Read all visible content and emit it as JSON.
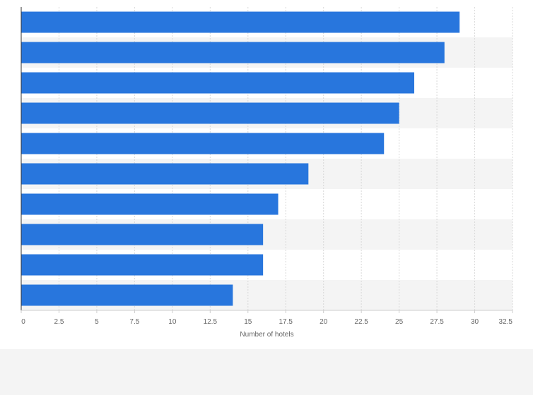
{
  "chart_data": {
    "type": "bar",
    "orientation": "horizontal",
    "categories": [
      "",
      "",
      "",
      "",
      "",
      "",
      "",
      "",
      "",
      ""
    ],
    "values": [
      29,
      28,
      26,
      25,
      24,
      19,
      17,
      16,
      16,
      14
    ],
    "xlabel": "Number of hotels",
    "ylabel": "",
    "xlim": [
      0,
      32.5
    ],
    "xticks": [
      "0",
      "2.5",
      "5",
      "7.5",
      "10",
      "12.5",
      "15",
      "17.5",
      "20",
      "22.5",
      "25",
      "27.5",
      "30",
      "32.5"
    ],
    "grid": true,
    "legend": "none",
    "colors": {
      "bar": "#2876dd",
      "band_alt": "#f4f4f4",
      "grid": "#d9d9d9",
      "axis": "#333333",
      "tick_text": "#666666",
      "page_bg": "#f4f4f4"
    }
  }
}
